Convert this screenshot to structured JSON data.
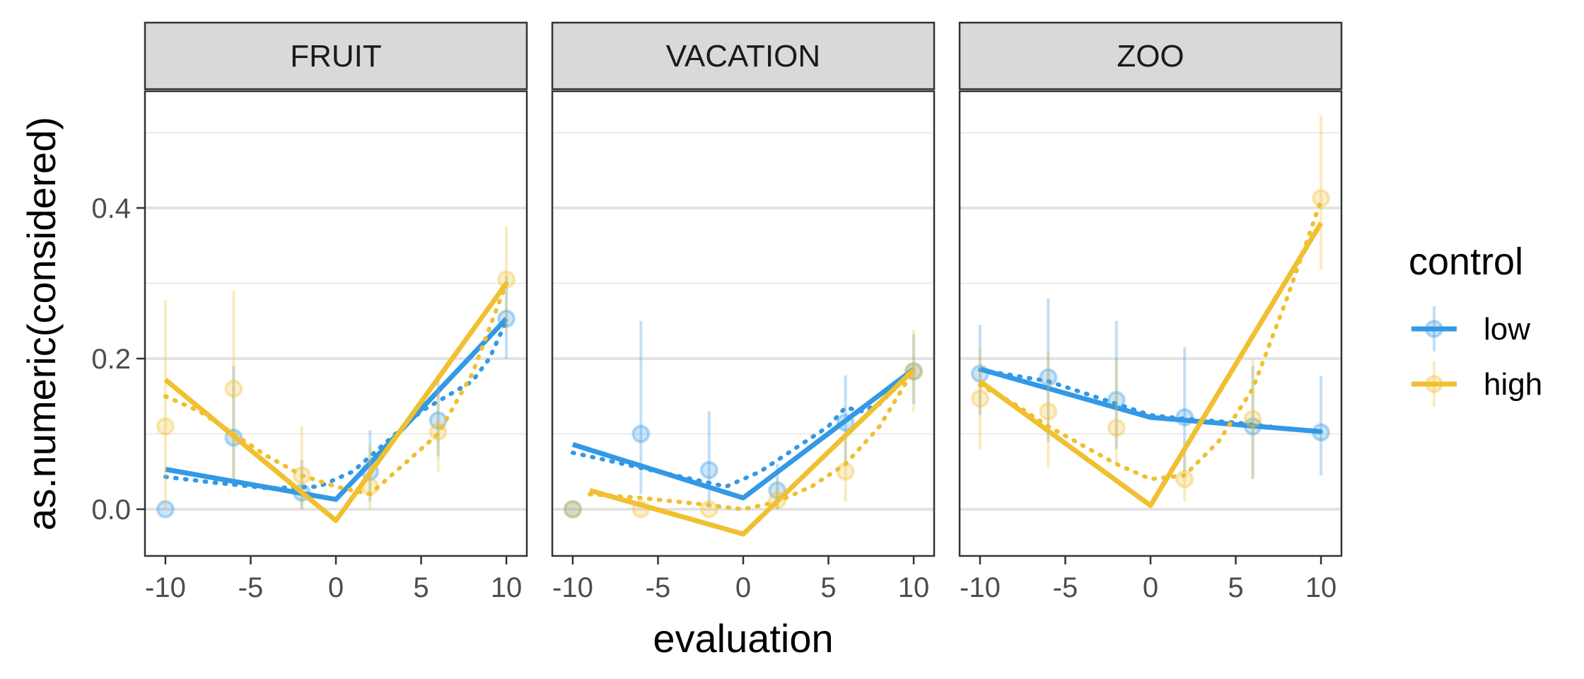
{
  "chart_data": {
    "type": "line",
    "xlabel": "evaluation",
    "ylabel": "as.numeric(considered)",
    "xlim": [
      -11.2,
      11.2
    ],
    "ylim": [
      -0.062,
      0.555
    ],
    "x_ticks": [
      -10,
      -5,
      0,
      5,
      10
    ],
    "x_tick_labels": [
      "-10",
      "-5",
      "0",
      "5",
      "10"
    ],
    "y_ticks": [
      0.0,
      0.2,
      0.4
    ],
    "y_tick_labels": [
      "0.0",
      "0.2",
      "0.4"
    ],
    "y_minor_ticks": [
      0.1,
      0.3,
      0.5
    ],
    "grid": true,
    "legend": {
      "title": "control",
      "position": "right",
      "entries": [
        {
          "label": "low",
          "color": "#3399e6"
        },
        {
          "label": "high",
          "color": "#f0c030"
        }
      ]
    },
    "panels": [
      {
        "title": "FRUIT",
        "series": [
          {
            "name": "low",
            "color": "#3399e6",
            "points": [
              {
                "x": -10,
                "y": 0.0,
                "lo": 0.0,
                "hi": 0.0
              },
              {
                "x": -6,
                "y": 0.095,
                "lo": 0.03,
                "hi": 0.19
              },
              {
                "x": -2,
                "y": 0.022,
                "lo": 0.0,
                "hi": 0.065
              },
              {
                "x": 2,
                "y": 0.05,
                "lo": 0.01,
                "hi": 0.105
              },
              {
                "x": 6,
                "y": 0.118,
                "lo": 0.07,
                "hi": 0.17
              },
              {
                "x": 10,
                "y": 0.253,
                "lo": 0.2,
                "hi": 0.31
              }
            ],
            "fit_solid": [
              [
                -10,
                0.053
              ],
              [
                0,
                0.013
              ],
              [
                10,
                0.253
              ]
            ],
            "fit_dotted": [
              [
                -10,
                0.043
              ],
              [
                -7,
                0.035
              ],
              [
                -4,
                0.028
              ],
              [
                -1,
                0.03
              ],
              [
                1,
                0.05
              ],
              [
                3,
                0.09
              ],
              [
                5,
                0.13
              ],
              [
                6.5,
                0.15
              ],
              [
                8,
                0.17
              ],
              [
                9,
                0.2
              ],
              [
                10,
                0.25
              ]
            ]
          },
          {
            "name": "high",
            "color": "#f0c030",
            "points": [
              {
                "x": -10,
                "y": 0.11,
                "lo": 0.0,
                "hi": 0.278
              },
              {
                "x": -6,
                "y": 0.16,
                "lo": 0.04,
                "hi": 0.29
              },
              {
                "x": -2,
                "y": 0.045,
                "lo": 0.0,
                "hi": 0.11
              },
              {
                "x": 2,
                "y": 0.03,
                "lo": 0.0,
                "hi": 0.085
              },
              {
                "x": 6,
                "y": 0.103,
                "lo": 0.05,
                "hi": 0.16
              },
              {
                "x": 10,
                "y": 0.305,
                "lo": 0.24,
                "hi": 0.375
              }
            ],
            "fit_solid": [
              [
                -10,
                0.172
              ],
              [
                0,
                -0.015
              ],
              [
                10,
                0.3
              ]
            ],
            "fit_dotted": [
              [
                -10,
                0.15
              ],
              [
                -8,
                0.13
              ],
              [
                -6,
                0.1
              ],
              [
                -4,
                0.07
              ],
              [
                -2,
                0.045
              ],
              [
                0,
                0.03
              ],
              [
                2,
                0.02
              ],
              [
                4,
                0.06
              ],
              [
                6,
                0.1
              ],
              [
                8,
                0.18
              ],
              [
                10,
                0.3
              ]
            ]
          }
        ]
      },
      {
        "title": "VACATION",
        "series": [
          {
            "name": "low",
            "color": "#3399e6",
            "points": [
              {
                "x": -10,
                "y": 0.0,
                "lo": 0.0,
                "hi": 0.0
              },
              {
                "x": -6,
                "y": 0.1,
                "lo": 0.02,
                "hi": 0.25
              },
              {
                "x": -2,
                "y": 0.052,
                "lo": 0.005,
                "hi": 0.13
              },
              {
                "x": 2,
                "y": 0.025,
                "lo": 0.0,
                "hi": 0.06
              },
              {
                "x": 6,
                "y": 0.115,
                "lo": 0.06,
                "hi": 0.178
              },
              {
                "x": 10,
                "y": 0.183,
                "lo": 0.14,
                "hi": 0.232
              }
            ],
            "fit_solid": [
              [
                -10,
                0.086
              ],
              [
                0,
                0.015
              ],
              [
                10,
                0.186
              ]
            ],
            "fit_dotted": [
              [
                -10,
                0.075
              ],
              [
                -7,
                0.06
              ],
              [
                -4,
                0.045
              ],
              [
                -1,
                0.03
              ],
              [
                1,
                0.05
              ],
              [
                3,
                0.08
              ],
              [
                5,
                0.11
              ],
              [
                6,
                0.135
              ],
              [
                7,
                0.13
              ],
              [
                8,
                0.14
              ],
              [
                10,
                0.185
              ]
            ]
          },
          {
            "name": "high",
            "color": "#f0c030",
            "points": [
              {
                "x": -10,
                "y": 0.0,
                "lo": 0.0,
                "hi": 0.0
              },
              {
                "x": -6,
                "y": 0.0,
                "lo": 0.0,
                "hi": 0.0
              },
              {
                "x": -2,
                "y": 0.0,
                "lo": 0.0,
                "hi": 0.0
              },
              {
                "x": 2,
                "y": 0.012,
                "lo": 0.0,
                "hi": 0.04
              },
              {
                "x": 6,
                "y": 0.05,
                "lo": 0.01,
                "hi": 0.1
              },
              {
                "x": 10,
                "y": 0.183,
                "lo": 0.13,
                "hi": 0.238
              }
            ],
            "fit_solid": [
              [
                -9,
                0.025
              ],
              [
                0,
                -0.033
              ],
              [
                10,
                0.185
              ]
            ],
            "fit_dotted": [
              [
                -9,
                0.02
              ],
              [
                -6,
                0.015
              ],
              [
                -3,
                0.008
              ],
              [
                0,
                0.0
              ],
              [
                2,
                0.01
              ],
              [
                4,
                0.03
              ],
              [
                6,
                0.06
              ],
              [
                8,
                0.11
              ],
              [
                10,
                0.185
              ]
            ]
          }
        ]
      },
      {
        "title": "ZOO",
        "series": [
          {
            "name": "low",
            "color": "#3399e6",
            "points": [
              {
                "x": -10,
                "y": 0.18,
                "lo": 0.125,
                "hi": 0.245
              },
              {
                "x": -6,
                "y": 0.175,
                "lo": 0.09,
                "hi": 0.28
              },
              {
                "x": -2,
                "y": 0.145,
                "lo": 0.08,
                "hi": 0.25
              },
              {
                "x": 2,
                "y": 0.122,
                "lo": 0.05,
                "hi": 0.215
              },
              {
                "x": 6,
                "y": 0.11,
                "lo": 0.04,
                "hi": 0.19
              },
              {
                "x": 10,
                "y": 0.102,
                "lo": 0.045,
                "hi": 0.177
              }
            ],
            "fit_solid": [
              [
                -10,
                0.186
              ],
              [
                0,
                0.122
              ],
              [
                10,
                0.103
              ]
            ],
            "fit_dotted": [
              [
                -10,
                0.185
              ],
              [
                -6,
                0.17
              ],
              [
                -2,
                0.14
              ],
              [
                0,
                0.125
              ],
              [
                2,
                0.12
              ],
              [
                5,
                0.115
              ],
              [
                8,
                0.107
              ],
              [
                10,
                0.103
              ]
            ]
          },
          {
            "name": "high",
            "color": "#f0c030",
            "points": [
              {
                "x": -10,
                "y": 0.147,
                "lo": 0.08,
                "hi": 0.215
              },
              {
                "x": -6,
                "y": 0.13,
                "lo": 0.055,
                "hi": 0.21
              },
              {
                "x": -2,
                "y": 0.108,
                "lo": 0.06,
                "hi": 0.2
              },
              {
                "x": 2,
                "y": 0.04,
                "lo": 0.01,
                "hi": 0.09
              },
              {
                "x": 6,
                "y": 0.12,
                "lo": 0.04,
                "hi": 0.2
              },
              {
                "x": 10,
                "y": 0.413,
                "lo": 0.318,
                "hi": 0.523
              }
            ],
            "fit_solid": [
              [
                -10,
                0.17
              ],
              [
                0,
                0.005
              ],
              [
                10,
                0.38
              ]
            ],
            "fit_dotted": [
              [
                -10,
                0.165
              ],
              [
                -8,
                0.14
              ],
              [
                -6,
                0.11
              ],
              [
                -4,
                0.085
              ],
              [
                -2,
                0.06
              ],
              [
                0,
                0.04
              ],
              [
                2,
                0.045
              ],
              [
                4,
                0.09
              ],
              [
                6,
                0.16
              ],
              [
                8,
                0.28
              ],
              [
                10,
                0.41
              ]
            ]
          }
        ]
      }
    ]
  }
}
